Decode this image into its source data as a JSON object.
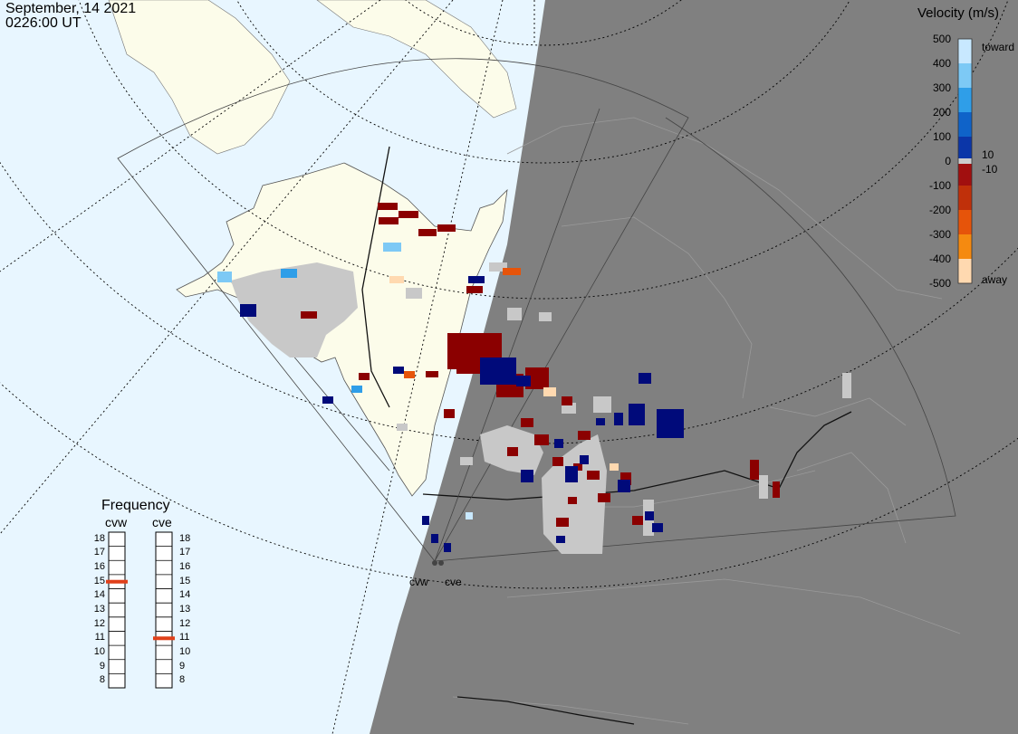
{
  "header": {
    "date": "September, 14 2021",
    "time": "0226:00 UT"
  },
  "colorbar": {
    "title": "Velocity (m/s)",
    "ticks": [
      "500",
      "400",
      "300",
      "200",
      "100",
      "0",
      "-100",
      "-200",
      "-300",
      "-400",
      "-500"
    ],
    "toward_label": "toward",
    "away_label": "away",
    "pos_small": "10",
    "neg_small": "-10",
    "colors": [
      "#c8e8ff",
      "#7dc9f5",
      "#2f9ee8",
      "#0f63c9",
      "#0b36a8",
      "#000a7a",
      "#cccccc",
      "#7a0000",
      "#a10f0f",
      "#c0300a",
      "#e6540a",
      "#f58a10",
      "#ffd9b0"
    ]
  },
  "frequency": {
    "title": "Frequency",
    "radars": [
      {
        "name": "cvw",
        "selected": "15"
      },
      {
        "name": "cve",
        "selected": "11"
      }
    ],
    "levels": [
      "18",
      "17",
      "16",
      "15",
      "14",
      "13",
      "12",
      "11",
      "10",
      "9",
      "8"
    ],
    "marker_color": "#e0401a"
  },
  "radar_sites": [
    {
      "name": "cvw"
    },
    {
      "name": "cve"
    }
  ],
  "map_colors": {
    "ocean_day": "#e8f6ff",
    "land_day": "#fcfcea",
    "night": "#808080",
    "no_ground_scatter": "#c8c8c8"
  }
}
